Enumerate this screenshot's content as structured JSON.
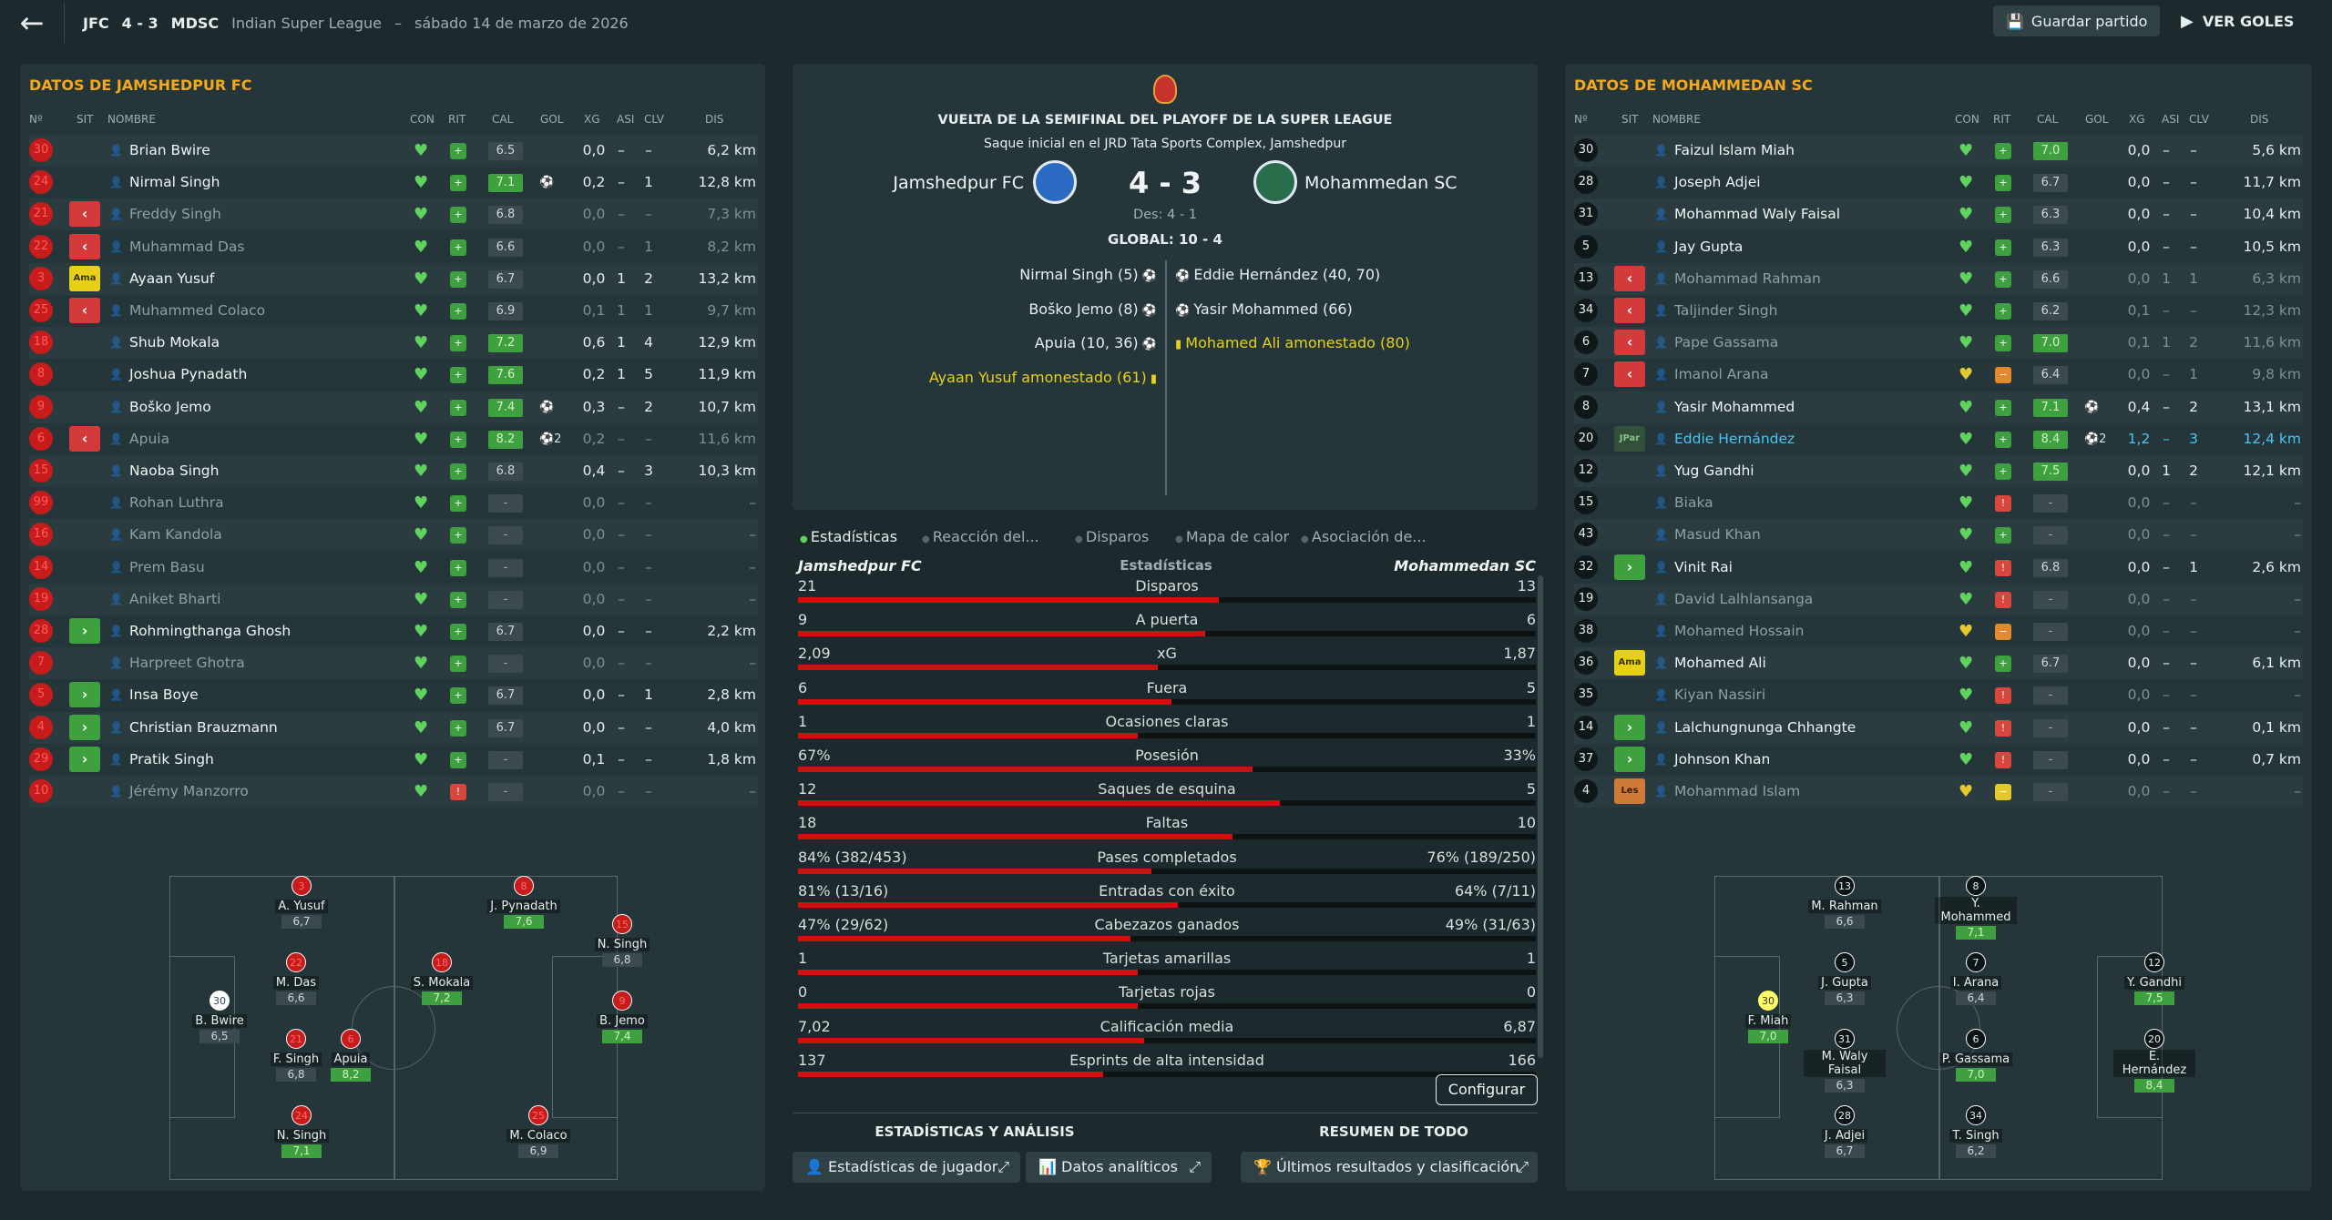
{
  "header": {
    "home_abbr": "JFC",
    "score": "4 - 3",
    "away_abbr": "MDSC",
    "competition": "Indian Super League",
    "date": "sábado 14 de marzo de 2026",
    "save_label": "Guardar partido",
    "goals_label": "VER GOLES"
  },
  "home": {
    "title": "DATOS DE JAMSHEDPUR FC"
  },
  "away": {
    "title": "DATOS DE MOHAMMEDAN SC"
  },
  "columns": [
    "Nº",
    "SIT",
    "NOMBRE",
    "CON",
    "RIT",
    "CAL",
    "GOL",
    "XG",
    "ASI",
    "CLV",
    "DIS"
  ],
  "home_players": [
    {
      "n": "30",
      "sit": "",
      "name": "Brian Bwire",
      "rit": "g",
      "cal": "6.5",
      "calc": "d",
      "gol": "",
      "xg": "0,0",
      "asi": "–",
      "clv": "–",
      "dis": "6,2 km",
      "numc": "red"
    },
    {
      "n": "24",
      "sit": "",
      "name": "Nirmal Singh",
      "rit": "g",
      "cal": "7.1",
      "calc": "g",
      "gol": "⚽",
      "xg": "0,2",
      "asi": "–",
      "clv": "1",
      "dis": "12,8 km",
      "numc": "red"
    },
    {
      "n": "21",
      "sit": "out",
      "name": "Freddy Singh",
      "rit": "g",
      "cal": "6.8",
      "calc": "d",
      "gol": "",
      "xg": "0,0",
      "asi": "–",
      "clv": "–",
      "dis": "7,3 km",
      "numc": "red",
      "sub": true
    },
    {
      "n": "22",
      "sit": "out",
      "name": "Muhammad Das",
      "rit": "g",
      "cal": "6.6",
      "calc": "d",
      "gol": "",
      "xg": "0,0",
      "asi": "–",
      "clv": "1",
      "dis": "8,2 km",
      "numc": "red",
      "sub": true
    },
    {
      "n": "3",
      "sit": "ama",
      "name": "Ayaan Yusuf",
      "rit": "g",
      "cal": "6.7",
      "calc": "d",
      "gol": "",
      "xg": "0,0",
      "asi": "1",
      "clv": "2",
      "dis": "13,2 km",
      "numc": "red"
    },
    {
      "n": "25",
      "sit": "out",
      "name": "Muhammed Colaco",
      "rit": "g",
      "cal": "6.9",
      "calc": "d",
      "gol": "",
      "xg": "0,1",
      "asi": "1",
      "clv": "1",
      "dis": "9,7 km",
      "numc": "red",
      "sub": true
    },
    {
      "n": "18",
      "sit": "",
      "name": "Shub Mokala",
      "rit": "g",
      "cal": "7.2",
      "calc": "g",
      "gol": "",
      "xg": "0,6",
      "asi": "1",
      "clv": "4",
      "dis": "12,9 km",
      "numc": "red"
    },
    {
      "n": "8",
      "sit": "",
      "name": "Joshua Pynadath",
      "rit": "g",
      "cal": "7.6",
      "calc": "g",
      "gol": "",
      "xg": "0,2",
      "asi": "1",
      "clv": "5",
      "dis": "11,9 km",
      "numc": "red"
    },
    {
      "n": "9",
      "sit": "",
      "name": "Boško Jemo",
      "rit": "g",
      "cal": "7.4",
      "calc": "g",
      "gol": "⚽",
      "xg": "0,3",
      "asi": "–",
      "clv": "2",
      "dis": "10,7 km",
      "numc": "red"
    },
    {
      "n": "6",
      "sit": "out",
      "name": "Apuia",
      "rit": "g",
      "cal": "8.2",
      "calc": "g",
      "gol": "⚽2",
      "xg": "0,2",
      "asi": "–",
      "clv": "–",
      "dis": "11,6 km",
      "numc": "red",
      "sub": true
    },
    {
      "n": "15",
      "sit": "",
      "name": "Naoba Singh",
      "rit": "g",
      "cal": "6.8",
      "calc": "d",
      "gol": "",
      "xg": "0,4",
      "asi": "–",
      "clv": "3",
      "dis": "10,3 km",
      "numc": "red"
    },
    {
      "n": "99",
      "sit": "",
      "name": "Rohan Luthra",
      "rit": "g",
      "cal": "-",
      "calc": "b",
      "gol": "",
      "xg": "0,0",
      "asi": "–",
      "clv": "–",
      "dis": "–",
      "numc": "red",
      "sub": true
    },
    {
      "n": "16",
      "sit": "",
      "name": "Kam Kandola",
      "rit": "g",
      "cal": "-",
      "calc": "b",
      "gol": "",
      "xg": "0,0",
      "asi": "–",
      "clv": "–",
      "dis": "–",
      "numc": "red",
      "sub": true
    },
    {
      "n": "14",
      "sit": "",
      "name": "Prem Basu",
      "rit": "g",
      "cal": "-",
      "calc": "b",
      "gol": "",
      "xg": "0,0",
      "asi": "–",
      "clv": "–",
      "dis": "–",
      "numc": "red",
      "sub": true
    },
    {
      "n": "19",
      "sit": "",
      "name": "Aniket Bharti",
      "rit": "g",
      "cal": "-",
      "calc": "b",
      "gol": "",
      "xg": "0,0",
      "asi": "–",
      "clv": "–",
      "dis": "–",
      "numc": "red",
      "sub": true
    },
    {
      "n": "28",
      "sit": "in",
      "name": "Rohmingthanga Ghosh",
      "rit": "g",
      "cal": "6.7",
      "calc": "d",
      "gol": "",
      "xg": "0,0",
      "asi": "–",
      "clv": "–",
      "dis": "2,2 km",
      "numc": "red"
    },
    {
      "n": "7",
      "sit": "",
      "name": "Harpreet Ghotra",
      "rit": "g",
      "cal": "-",
      "calc": "b",
      "gol": "",
      "xg": "0,0",
      "asi": "–",
      "clv": "–",
      "dis": "–",
      "numc": "red",
      "sub": true
    },
    {
      "n": "5",
      "sit": "in",
      "name": "Insa Boye",
      "rit": "g",
      "cal": "6.7",
      "calc": "d",
      "gol": "",
      "xg": "0,0",
      "asi": "–",
      "clv": "1",
      "dis": "2,8 km",
      "numc": "red"
    },
    {
      "n": "4",
      "sit": "in",
      "name": "Christian Brauzmann",
      "rit": "g",
      "cal": "6.7",
      "calc": "d",
      "gol": "",
      "xg": "0,0",
      "asi": "–",
      "clv": "–",
      "dis": "4,0 km",
      "numc": "red"
    },
    {
      "n": "29",
      "sit": "in",
      "name": "Pratik Singh",
      "rit": "g",
      "cal": "-",
      "calc": "b",
      "gol": "",
      "xg": "0,1",
      "asi": "–",
      "clv": "–",
      "dis": "1,8 km",
      "numc": "red"
    },
    {
      "n": "10",
      "sit": "",
      "name": "Jérémy Manzorro",
      "rit": "r",
      "cal": "-",
      "calc": "b",
      "gol": "",
      "xg": "0,0",
      "asi": "–",
      "clv": "–",
      "dis": "–",
      "numc": "red",
      "sub": true
    }
  ],
  "away_players": [
    {
      "n": "30",
      "sit": "",
      "name": "Faizul Islam Miah",
      "rit": "g",
      "cal": "7.0",
      "calc": "g",
      "gol": "",
      "xg": "0,0",
      "asi": "–",
      "clv": "–",
      "dis": "5,6 km",
      "numc": "blk"
    },
    {
      "n": "28",
      "sit": "",
      "name": "Joseph Adjei",
      "rit": "g",
      "cal": "6.7",
      "calc": "d",
      "gol": "",
      "xg": "0,0",
      "asi": "–",
      "clv": "–",
      "dis": "11,7 km",
      "numc": "blk"
    },
    {
      "n": "31",
      "sit": "",
      "name": "Mohammad Waly Faisal",
      "rit": "g",
      "cal": "6.3",
      "calc": "d",
      "gol": "",
      "xg": "0,0",
      "asi": "–",
      "clv": "–",
      "dis": "10,4 km",
      "numc": "blk"
    },
    {
      "n": "5",
      "sit": "",
      "name": "Jay Gupta",
      "rit": "g",
      "cal": "6.3",
      "calc": "d",
      "gol": "",
      "xg": "0,0",
      "asi": "–",
      "clv": "–",
      "dis": "10,5 km",
      "numc": "blk"
    },
    {
      "n": "13",
      "sit": "out",
      "name": "Mohammad Rahman",
      "rit": "g",
      "cal": "6.6",
      "calc": "d",
      "gol": "",
      "xg": "0,0",
      "asi": "1",
      "clv": "1",
      "dis": "6,3 km",
      "numc": "blk",
      "sub": true
    },
    {
      "n": "34",
      "sit": "out",
      "name": "Taljinder Singh",
      "rit": "g",
      "cal": "6.2",
      "calc": "d",
      "gol": "",
      "xg": "0,1",
      "asi": "–",
      "clv": "–",
      "dis": "12,3 km",
      "numc": "blk",
      "sub": true
    },
    {
      "n": "6",
      "sit": "out",
      "name": "Pape Gassama",
      "rit": "g",
      "cal": "7.0",
      "calc": "g",
      "gol": "",
      "xg": "0,1",
      "asi": "1",
      "clv": "2",
      "dis": "11,6 km",
      "numc": "blk",
      "sub": true
    },
    {
      "n": "7",
      "sit": "out",
      "name": "Imanol Arana",
      "rit": "o",
      "cal": "6.4",
      "calc": "d",
      "gol": "",
      "xg": "0,0",
      "asi": "–",
      "clv": "1",
      "dis": "9,8 km",
      "numc": "blk",
      "sub": true
    },
    {
      "n": "8",
      "sit": "",
      "name": "Yasir Mohammed",
      "rit": "g",
      "cal": "7.1",
      "calc": "g",
      "gol": "⚽",
      "xg": "0,4",
      "asi": "–",
      "clv": "2",
      "dis": "13,1 km",
      "numc": "blk"
    },
    {
      "n": "20",
      "sit": "jpar",
      "name": "Eddie Hernández",
      "rit": "g",
      "cal": "8.4",
      "calc": "g",
      "gol": "⚽2",
      "xg": "1,2",
      "asi": "–",
      "clv": "3",
      "dis": "12,4 km",
      "numc": "blk",
      "blue": true
    },
    {
      "n": "12",
      "sit": "",
      "name": "Yug Gandhi",
      "rit": "g",
      "cal": "7.5",
      "calc": "g",
      "gol": "",
      "xg": "0,0",
      "asi": "1",
      "clv": "2",
      "dis": "12,1 km",
      "numc": "blk"
    },
    {
      "n": "15",
      "sit": "",
      "name": "Biaka",
      "rit": "r",
      "cal": "-",
      "calc": "b",
      "gol": "",
      "xg": "0,0",
      "asi": "–",
      "clv": "–",
      "dis": "–",
      "numc": "blk",
      "sub": true
    },
    {
      "n": "43",
      "sit": "",
      "name": "Masud Khan",
      "rit": "g",
      "cal": "-",
      "calc": "b",
      "gol": "",
      "xg": "0,0",
      "asi": "–",
      "clv": "–",
      "dis": "–",
      "numc": "blk",
      "sub": true
    },
    {
      "n": "32",
      "sit": "in",
      "name": "Vinit Rai",
      "rit": "r",
      "cal": "6.8",
      "calc": "d",
      "gol": "",
      "xg": "0,0",
      "asi": "–",
      "clv": "1",
      "dis": "2,6 km",
      "numc": "blk"
    },
    {
      "n": "19",
      "sit": "",
      "name": "David Lalhlansanga",
      "rit": "r",
      "cal": "-",
      "calc": "b",
      "gol": "",
      "xg": "0,0",
      "asi": "–",
      "clv": "–",
      "dis": "–",
      "numc": "blk",
      "sub": true
    },
    {
      "n": "38",
      "sit": "",
      "name": "Mohamed Hossain",
      "rit": "o",
      "cal": "-",
      "calc": "b",
      "gol": "",
      "xg": "0,0",
      "asi": "–",
      "clv": "–",
      "dis": "–",
      "numc": "blk",
      "sub": true
    },
    {
      "n": "36",
      "sit": "ama",
      "name": "Mohamed Ali",
      "rit": "g",
      "cal": "6.7",
      "calc": "d",
      "gol": "",
      "xg": "0,0",
      "asi": "–",
      "clv": "–",
      "dis": "6,1 km",
      "numc": "blk"
    },
    {
      "n": "35",
      "sit": "",
      "name": "Kiyan Nassiri",
      "rit": "r",
      "cal": "-",
      "calc": "b",
      "gol": "",
      "xg": "0,0",
      "asi": "–",
      "clv": "–",
      "dis": "–",
      "numc": "blk",
      "sub": true
    },
    {
      "n": "14",
      "sit": "in",
      "name": "Lalchungnunga Chhangte",
      "rit": "r",
      "cal": "-",
      "calc": "b",
      "gol": "",
      "xg": "0,0",
      "asi": "–",
      "clv": "–",
      "dis": "0,1 km",
      "numc": "blk"
    },
    {
      "n": "37",
      "sit": "in",
      "name": "Johnson Khan",
      "rit": "r",
      "cal": "-",
      "calc": "b",
      "gol": "",
      "xg": "0,0",
      "asi": "–",
      "clv": "–",
      "dis": "0,7 km",
      "numc": "blk"
    },
    {
      "n": "4",
      "sit": "les",
      "name": "Mohammad Islam",
      "rit": "y",
      "cal": "-",
      "calc": "b",
      "gol": "",
      "xg": "0,0",
      "asi": "–",
      "clv": "–",
      "dis": "–",
      "numc": "blk",
      "sub": true
    }
  ],
  "sit_labels": {
    "ama": "Ama",
    "jpar": "JPar",
    "les": "Les",
    "out": "‹",
    "in": "›"
  },
  "match": {
    "stage": "VUELTA DE LA SEMIFINAL DEL PLAYOFF DE LA SUPER LEAGUE",
    "venue": "Saque inicial en el JRD Tata Sports Complex, Jamshedpur",
    "home_name": "Jamshedpur FC",
    "away_name": "Mohammedan SC",
    "score": "4 - 3",
    "des": "Des: 4 - 1",
    "global": "GLOBAL: 10 - 4"
  },
  "events_home": [
    "Nirmal Singh (5)",
    "Boško Jemo (8)",
    "Apuia (10, 36)",
    "Ayaan Yusuf amonestado (61)"
  ],
  "events_away": [
    "Eddie Hernández (40, 70)",
    "Yasir Mohammed (66)",
    "Mohamed Ali amonestado (80)"
  ],
  "tabs": [
    "Estadísticas",
    "Reacción del...",
    "Disparos",
    "Mapa de calor",
    "Asociación de..."
  ],
  "stats_header": {
    "home": "Jamshedpur FC",
    "mid": "Estadísticas",
    "away": "Mohammedan SC"
  },
  "stats": [
    {
      "label": "Disparos",
      "h": "21",
      "a": "13",
      "pct": 0.62
    },
    {
      "label": "A puerta",
      "h": "9",
      "a": "6",
      "pct": 0.6
    },
    {
      "label": "xG",
      "h": "2,09",
      "a": "1,87",
      "pct": 0.53
    },
    {
      "label": "Fuera",
      "h": "6",
      "a": "5",
      "pct": 0.55
    },
    {
      "label": "Ocasiones claras",
      "h": "1",
      "a": "1",
      "pct": 0.5
    },
    {
      "label": "Posesión",
      "h": "67%",
      "a": "33%",
      "pct": 0.67
    },
    {
      "label": "Saques de esquina",
      "h": "12",
      "a": "5",
      "pct": 0.71
    },
    {
      "label": "Faltas",
      "h": "18",
      "a": "10",
      "pct": 0.64
    },
    {
      "label": "Pases completados",
      "h": "84% (382/453)",
      "a": "76% (189/250)",
      "pct": 0.52
    },
    {
      "label": "Entradas con éxito",
      "h": "81% (13/16)",
      "a": "64% (7/11)",
      "pct": 0.56
    },
    {
      "label": "Cabezazos ganados",
      "h": "47% (29/62)",
      "a": "49% (31/63)",
      "pct": 0.49
    },
    {
      "label": "Tarjetas amarillas",
      "h": "1",
      "a": "1",
      "pct": 0.5
    },
    {
      "label": "Tarjetas rojas",
      "h": "0",
      "a": "0",
      "pct": 0.5
    },
    {
      "label": "Calificación media",
      "h": "7,02",
      "a": "6,87",
      "pct": 0.51
    },
    {
      "label": "Esprints de alta intensidad",
      "h": "137",
      "a": "166",
      "pct": 0.45
    }
  ],
  "configure_label": "Configurar",
  "bottom": {
    "left_title": "ESTADÍSTICAS Y ANÁLISIS",
    "right_title": "RESUMEN DE TODO",
    "btn_players": "Estadísticas de jugador",
    "btn_analytics": "Datos analíticos",
    "btn_results": "Últimos resultados y clasificación"
  },
  "home_formation": [
    {
      "n": "30",
      "name": "B. Bwire",
      "r": "6,5",
      "g": false,
      "c": "gk2"
    },
    {
      "n": "3",
      "name": "A. Yusuf",
      "r": "6,7",
      "g": false,
      "c": "r"
    },
    {
      "n": "8",
      "name": "J. Pynadath",
      "r": "7,6",
      "g": true,
      "c": "r"
    },
    {
      "n": "15",
      "name": "N. Singh",
      "r": "6,8",
      "g": false,
      "c": "r"
    },
    {
      "n": "22",
      "name": "M. Das",
      "r": "6,6",
      "g": false,
      "c": "r"
    },
    {
      "n": "18",
      "name": "S. Mokala",
      "r": "7,2",
      "g": true,
      "c": "r"
    },
    {
      "n": "9",
      "name": "B. Jemo",
      "r": "7,4",
      "g": true,
      "c": "r"
    },
    {
      "n": "21",
      "name": "F. Singh",
      "r": "6,8",
      "g": false,
      "c": "r"
    },
    {
      "n": "6",
      "name": "Apuia",
      "r": "8,2",
      "g": true,
      "c": "r"
    },
    {
      "n": "24",
      "name": "N. Singh",
      "r": "7,1",
      "g": true,
      "c": "r"
    },
    {
      "n": "25",
      "name": "M. Colaco",
      "r": "6,9",
      "g": false,
      "c": "r"
    }
  ],
  "away_formation": [
    {
      "n": "30",
      "name": "F. Miah",
      "r": "7,0",
      "g": true,
      "c": "gk"
    },
    {
      "n": "13",
      "name": "M. Rahman",
      "r": "6,6",
      "g": false,
      "c": "k"
    },
    {
      "n": "8",
      "name": "Y. Mohammed",
      "r": "7,1",
      "g": true,
      "c": "k"
    },
    {
      "n": "12",
      "name": "Y. Gandhi",
      "r": "7,5",
      "g": true,
      "c": "k"
    },
    {
      "n": "5",
      "name": "J. Gupta",
      "r": "6,3",
      "g": false,
      "c": "k"
    },
    {
      "n": "7",
      "name": "I. Arana",
      "r": "6,4",
      "g": false,
      "c": "k"
    },
    {
      "n": "31",
      "name": "M. Waly Faisal",
      "r": "6,3",
      "g": false,
      "c": "k"
    },
    {
      "n": "6",
      "name": "P. Gassama",
      "r": "7,0",
      "g": true,
      "c": "k"
    },
    {
      "n": "20",
      "name": "E. Hernández",
      "r": "8,4",
      "g": true,
      "c": "k"
    },
    {
      "n": "28",
      "name": "J. Adjei",
      "r": "6,7",
      "g": false,
      "c": "k"
    },
    {
      "n": "34",
      "name": "T. Singh",
      "r": "6,2",
      "g": false,
      "c": "k"
    }
  ]
}
